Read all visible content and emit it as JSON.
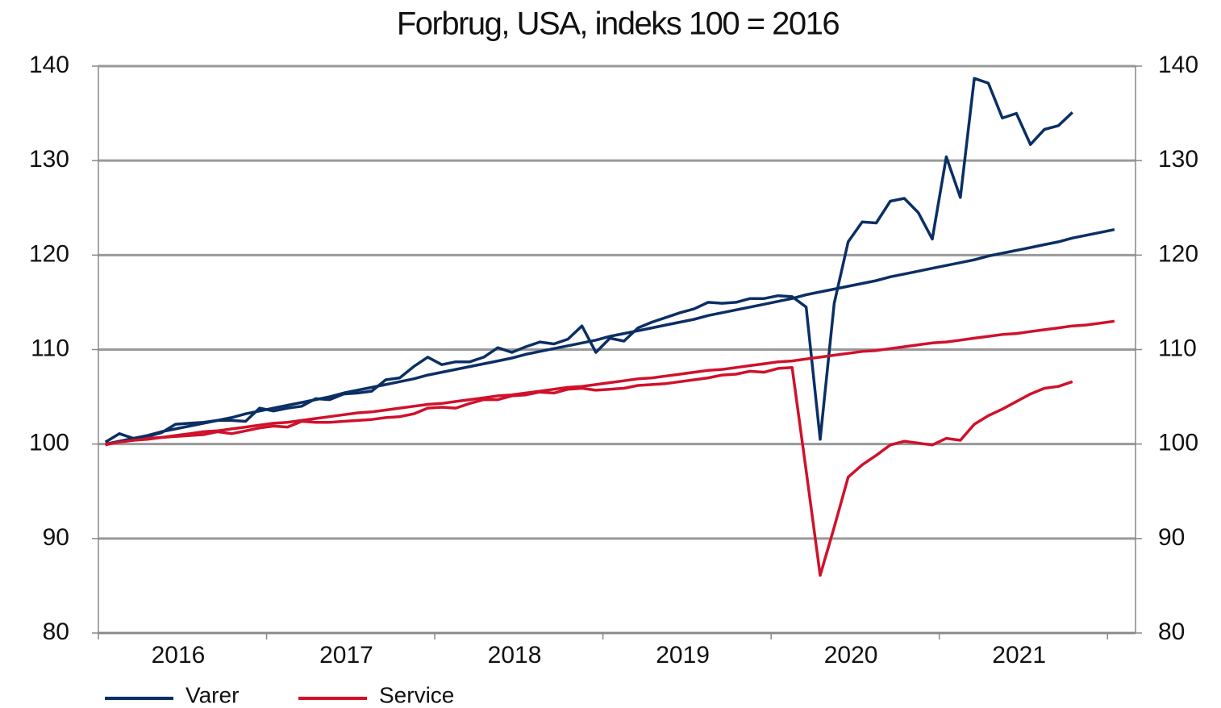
{
  "chart_data": {
    "type": "line",
    "title": "Forbrug, USA, indeks 100 = 2016",
    "categories": [
      null,
      null,
      null,
      null,
      null,
      null,
      "2016",
      null,
      null,
      null,
      null,
      null,
      null,
      null,
      null,
      null,
      null,
      null,
      "2017",
      null,
      null,
      null,
      null,
      null,
      null,
      null,
      null,
      null,
      null,
      null,
      "2018",
      null,
      null,
      null,
      null,
      null,
      null,
      null,
      null,
      null,
      null,
      null,
      "2019",
      null,
      null,
      null,
      null,
      null,
      null,
      null,
      null,
      null,
      null,
      null,
      "2020",
      null,
      null,
      null,
      null,
      null,
      null,
      null,
      null,
      null,
      null,
      null,
      "2021",
      null,
      null,
      null,
      null,
      null,
      null,
      null
    ],
    "series": [
      {
        "name": "Varer",
        "color": "#0b2f64",
        "values": [
          100.2,
          101.1,
          100.6,
          100.8,
          101.2,
          102.1,
          102.2,
          102.3,
          102.5,
          102.5,
          102.4,
          103.8,
          103.5,
          103.8,
          104.0,
          104.8,
          104.7,
          105.3,
          105.4,
          105.6,
          106.8,
          107.0,
          108.2,
          109.2,
          108.4,
          108.7,
          108.7,
          109.2,
          110.2,
          109.7,
          110.3,
          110.8,
          110.6,
          111.1,
          112.5,
          109.7,
          111.2,
          110.9,
          112.3,
          112.9,
          113.4,
          113.9,
          114.3,
          115.0,
          114.9,
          115.0,
          115.4,
          115.4,
          115.7,
          115.6,
          114.5,
          100.5,
          114.9,
          121.4,
          123.5,
          123.4,
          125.7,
          126.0,
          124.5,
          121.7,
          130.4,
          126.1,
          138.7,
          138.2,
          134.5,
          135.0,
          131.7,
          133.3,
          133.7,
          135.1,
          null,
          null,
          null,
          null
        ]
      },
      {
        "name": "Service",
        "color": "#d0112b",
        "values": [
          99.9,
          100.3,
          100.4,
          100.6,
          100.7,
          100.8,
          100.9,
          101.0,
          101.3,
          101.1,
          101.4,
          101.7,
          101.9,
          101.8,
          102.4,
          102.3,
          102.3,
          102.4,
          102.5,
          102.6,
          102.8,
          102.9,
          103.2,
          103.8,
          103.9,
          103.8,
          104.3,
          104.7,
          104.7,
          105.1,
          105.2,
          105.5,
          105.4,
          105.8,
          105.9,
          105.7,
          105.8,
          105.9,
          106.2,
          106.3,
          106.4,
          106.6,
          106.8,
          107.0,
          107.3,
          107.4,
          107.7,
          107.6,
          108.0,
          108.1,
          97.2,
          86.1,
          91.2,
          96.5,
          97.8,
          98.8,
          99.9,
          100.3,
          100.1,
          99.9,
          100.6,
          100.4,
          102.1,
          103.0,
          103.7,
          104.5,
          105.3,
          105.9,
          106.1,
          106.6,
          null,
          null,
          null,
          null
        ]
      },
      {
        "color": "#0b2f64",
        "values": [
          100.0,
          100.3,
          100.6,
          100.9,
          101.3,
          101.6,
          101.9,
          102.2,
          102.5,
          102.8,
          103.2,
          103.5,
          103.8,
          104.1,
          104.4,
          104.7,
          105.0,
          105.4,
          105.7,
          106.0,
          106.3,
          106.6,
          106.9,
          107.3,
          107.6,
          107.9,
          108.2,
          108.5,
          108.8,
          109.1,
          109.5,
          109.8,
          110.1,
          110.4,
          110.7,
          111.0,
          111.4,
          111.7,
          112.0,
          112.3,
          112.6,
          112.9,
          113.2,
          113.6,
          113.9,
          114.2,
          114.5,
          114.8,
          115.1,
          115.4,
          115.8,
          116.1,
          116.4,
          116.7,
          117.0,
          117.3,
          117.7,
          118.0,
          118.3,
          118.6,
          118.9,
          119.2,
          119.5,
          119.9,
          120.2,
          120.5,
          120.8,
          121.1,
          121.4,
          121.8,
          122.1,
          122.4,
          122.7,
          null
        ]
      },
      {
        "color": "#d0112b",
        "values": [
          100.0,
          100.2,
          100.4,
          100.5,
          100.7,
          100.9,
          101.1,
          101.3,
          101.4,
          101.6,
          101.8,
          102.0,
          102.2,
          102.3,
          102.5,
          102.7,
          102.9,
          103.1,
          103.3,
          103.4,
          103.6,
          103.8,
          104.0,
          104.2,
          104.3,
          104.5,
          104.7,
          104.9,
          105.1,
          105.2,
          105.4,
          105.6,
          105.8,
          106.0,
          106.1,
          106.3,
          106.5,
          106.7,
          106.9,
          107.0,
          107.2,
          107.4,
          107.6,
          107.8,
          107.9,
          108.1,
          108.3,
          108.5,
          108.7,
          108.8,
          109.0,
          109.2,
          109.4,
          109.6,
          109.8,
          109.9,
          110.1,
          110.3,
          110.5,
          110.7,
          110.8,
          111.0,
          111.2,
          111.4,
          111.6,
          111.7,
          111.9,
          112.1,
          112.3,
          112.5,
          112.6,
          112.8,
          113.0,
          null
        ]
      }
    ],
    "ylim": [
      80,
      140
    ],
    "yticks": [
      80,
      90,
      100,
      110,
      120,
      130,
      140
    ],
    "y2lim": [
      80,
      140
    ],
    "y2ticks": [
      80,
      90,
      100,
      110,
      120,
      130,
      140
    ],
    "grid": true
  }
}
